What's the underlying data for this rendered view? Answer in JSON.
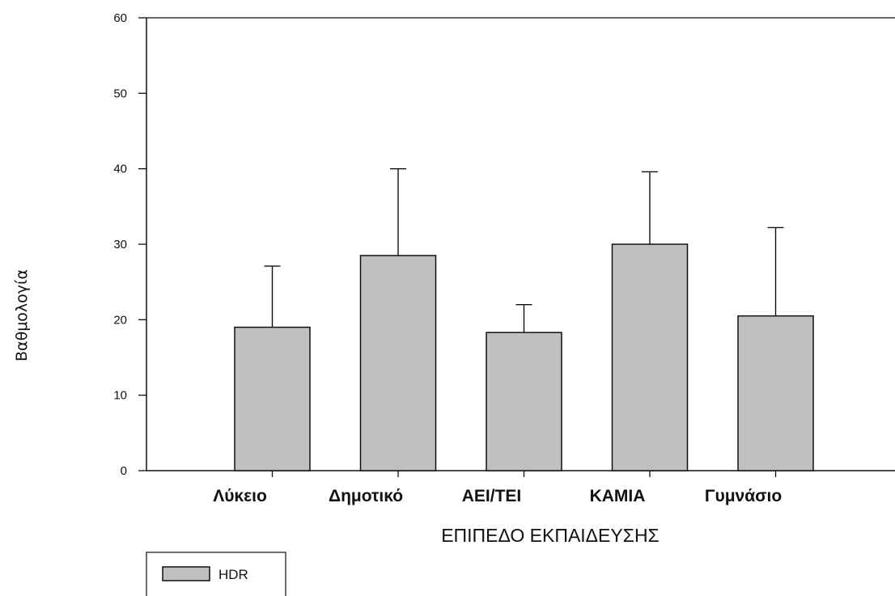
{
  "chart_data": {
    "type": "bar",
    "categories": [
      "Λύκειο",
      "Δημοτικό",
      "ΑΕΙ/ΤΕΙ",
      "ΚΑΜΙΑ",
      "Γυμνάσιο"
    ],
    "series": [
      {
        "name": "HDR",
        "values": [
          19.0,
          28.5,
          18.3,
          30.0,
          20.5
        ],
        "error_upper": [
          27.1,
          40.0,
          22.0,
          39.6,
          32.2
        ],
        "color": "#c0c0c0"
      }
    ],
    "xlabel": "ΕΠΙΠΕΔΟ ΕΚΠΑΙΔΕΥΣΗΣ",
    "ylabel": "Βαθμολογία",
    "ylim": [
      0,
      60
    ],
    "yticks": [
      "0",
      "10",
      "20",
      "30",
      "40",
      "50",
      "60"
    ],
    "grid": false,
    "legend": {
      "placement": "bottom-left",
      "entries": [
        "HDR"
      ]
    }
  }
}
